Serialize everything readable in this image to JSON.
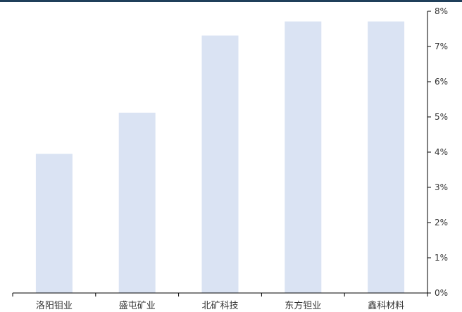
{
  "chart_data": {
    "type": "bar",
    "categories": [
      "洛阳钼业",
      "盛屯矿业",
      "北矿科技",
      "东方钽业",
      "鑫科材料"
    ],
    "values": [
      3.95,
      5.12,
      7.31,
      7.71,
      7.71
    ],
    "y_axis_position": "right",
    "ylim": [
      0,
      8
    ],
    "y_ticks": [
      "0%",
      "1%",
      "2%",
      "3%",
      "4%",
      "5%",
      "6%",
      "7%",
      "8%"
    ],
    "grid": false,
    "legend": "none",
    "colors": {
      "bar": "#dae3f3",
      "axis": "#000000",
      "header_rule": "#1f3f5a"
    }
  }
}
